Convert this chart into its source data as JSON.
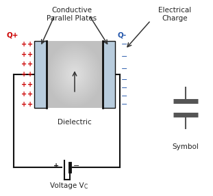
{
  "bg_color": "#ffffff",
  "plate_color": "#b8ccdd",
  "plate_edge_color": "#111111",
  "circuit_color": "#111111",
  "plus_color": "#cc0000",
  "minus_color": "#2255aa",
  "symbol_color": "#555555",
  "label_conductive": "Conductive\nParallel Plates",
  "label_electrical": "Electrical\nCharge",
  "label_dielectric": "Dielectric",
  "label_qplus": "Q+",
  "label_qminus": "Q-",
  "label_voltage": "Voltage V",
  "label_vc_sub": "C",
  "label_symbol": "Symbol"
}
